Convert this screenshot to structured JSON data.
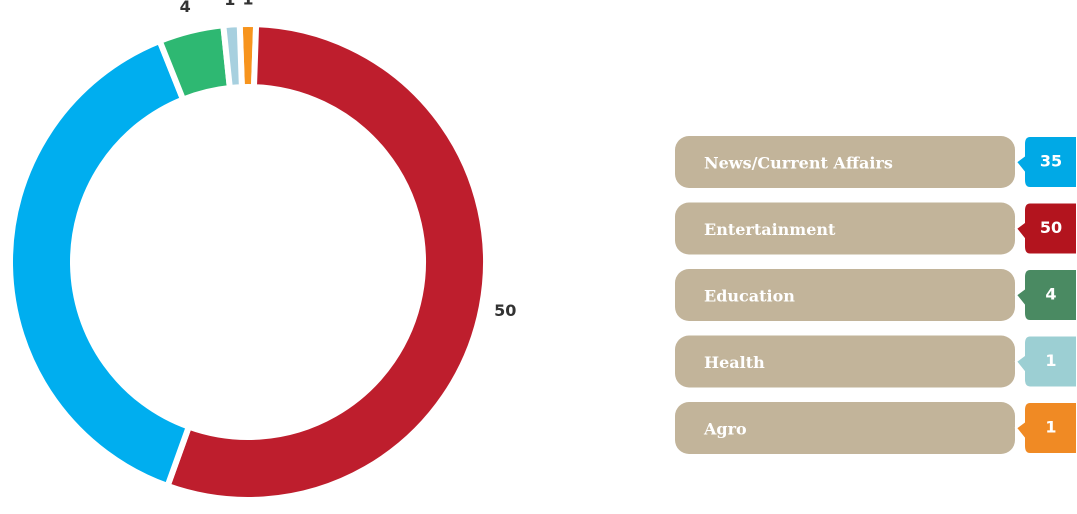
{
  "chart_data": {
    "type": "donut",
    "categories": [
      "News/Current Affairs",
      "Entertainment",
      "Education",
      "Health",
      "Agro"
    ],
    "values": [
      35,
      50,
      4,
      1,
      1
    ],
    "colors": [
      "#00aeef",
      "#be1e2d",
      "#2eb872",
      "#a7d0df",
      "#f7941d"
    ],
    "legend_colors": [
      "#00a9e6",
      "#b3141e",
      "#4a8a62",
      "#9ccfd3",
      "#f08a24"
    ]
  }
}
